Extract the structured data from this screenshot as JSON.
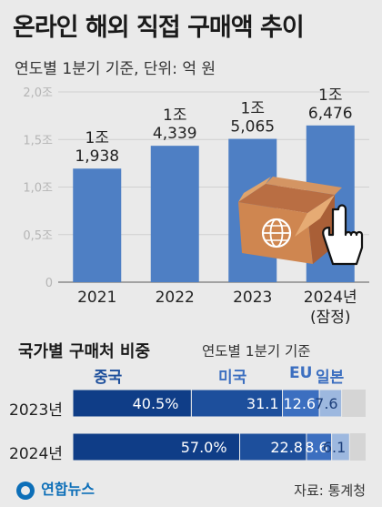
{
  "title": "온라인 해외 직접 구매액 추이",
  "subtitle": "연도별 1분기 기준, 단위: 억 원",
  "chart_data": [
    {
      "type": "bar",
      "categories": [
        "2021",
        "2022",
        "2023",
        "2024년"
      ],
      "category_notes": [
        "",
        "",
        "",
        "(잠정)"
      ],
      "values": [
        11938,
        14339,
        15065,
        16476
      ],
      "data_labels": [
        {
          "line1": "1조",
          "line2": "1,938"
        },
        {
          "line1": "1조",
          "line2": "4,339"
        },
        {
          "line1": "1조",
          "line2": "5,065"
        },
        {
          "line1": "1조",
          "line2": "6,476"
        }
      ],
      "yticks": [
        "0",
        "0,5조",
        "1,0조",
        "1,5조",
        "2,0조"
      ],
      "ylim": [
        0,
        20000
      ],
      "grid": true,
      "bar_color": "#4e7fc4"
    },
    {
      "type": "bar",
      "orientation": "horizontal-stacked",
      "title": "국가별 구매처 비중",
      "basis": "연도별 1분기 기준",
      "series_names": [
        "중국",
        "미국",
        "EU",
        "일본"
      ],
      "series_colors": [
        "#0f3d87",
        "#1d4f9c",
        "#3c6fc0",
        "#9db8df"
      ],
      "rows": [
        {
          "label": "2023년",
          "values": [
            40.5,
            31.1,
            12.6,
            7.6
          ],
          "labels": [
            "40.5%",
            "31.1",
            "12.6",
            "7.6"
          ]
        },
        {
          "label": "2024년",
          "values": [
            57.0,
            22.8,
            8.6,
            6.1
          ],
          "labels": [
            "57.0%",
            "22.8",
            "8.6",
            "6.1"
          ]
        }
      ]
    }
  ],
  "illustration": {
    "icons": [
      "box-icon",
      "globe-icon",
      "hand-cursor-icon"
    ]
  },
  "source": "자료: 통계청",
  "logo_text": "연합뉴스"
}
